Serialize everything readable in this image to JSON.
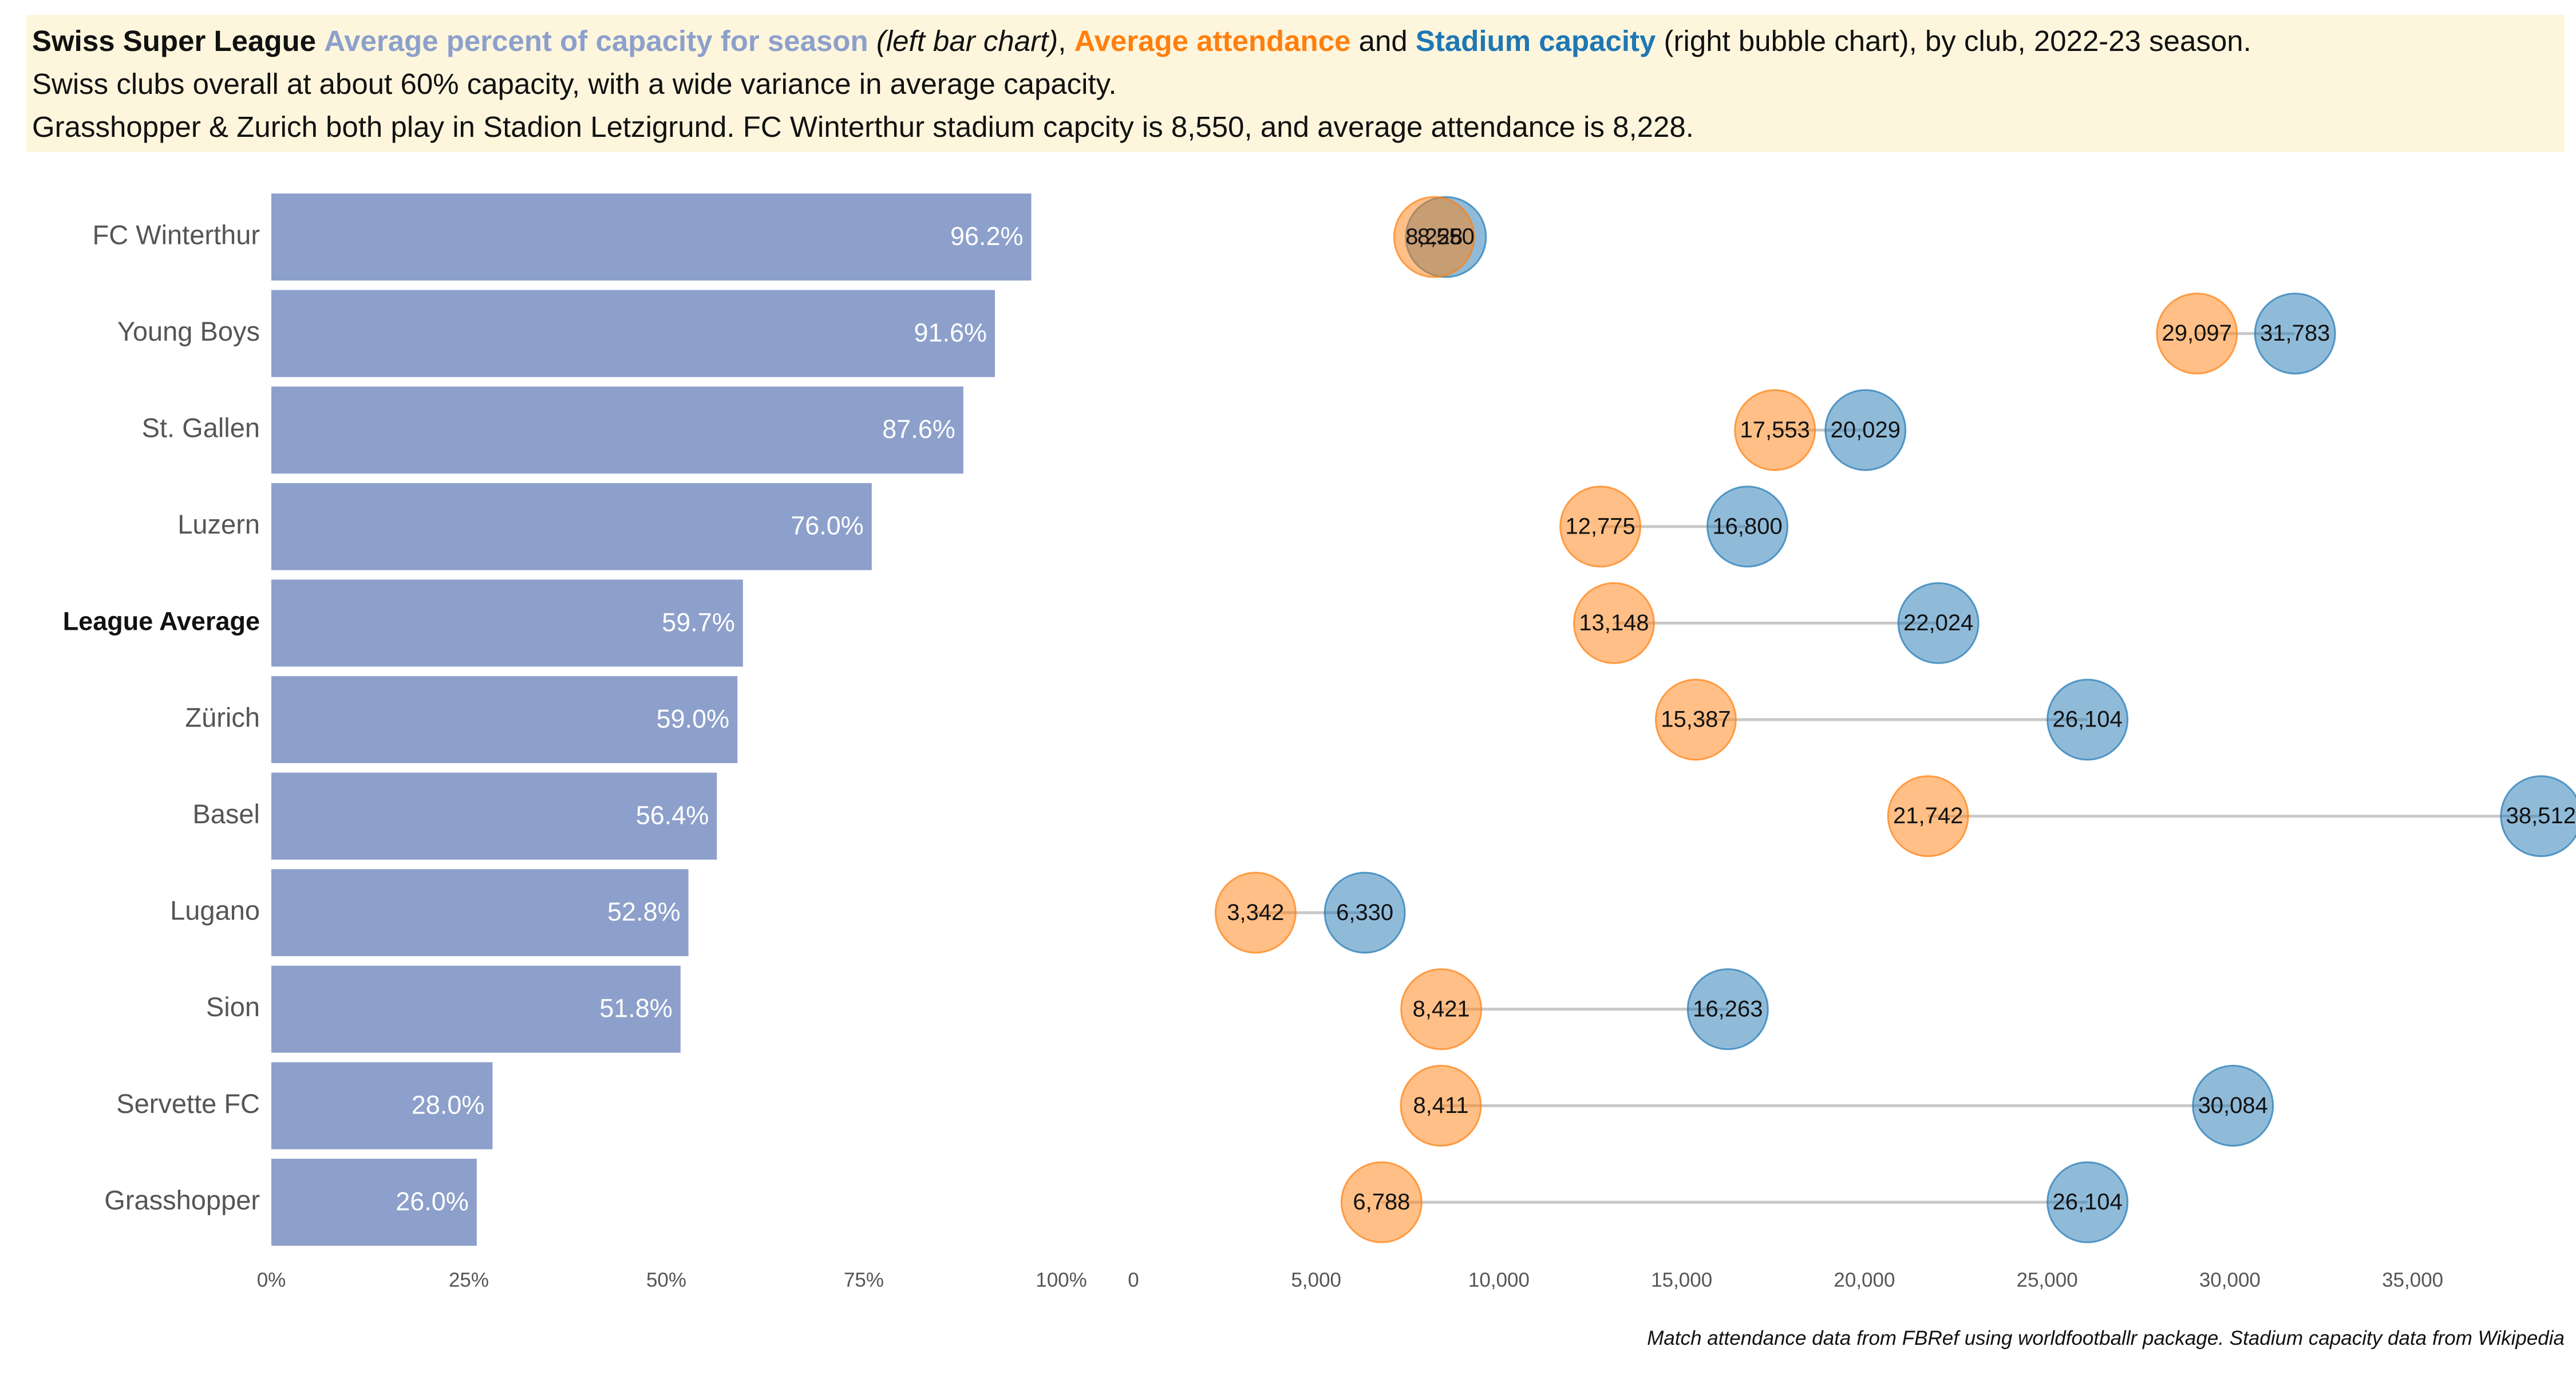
{
  "header": {
    "line1": {
      "league": "Swiss Super League",
      "pct_label": "Average percent of capacity for season",
      "left_note": "(left bar chart)",
      "comma": ",",
      "att_label": "Average attendance",
      "and": "and",
      "cap_label": "Stadium capacity",
      "right_note": "(right bubble chart), by club, 2022-23 season."
    },
    "line2": "Swiss clubs overall at about 60% capacity, with a wide variance in average capacity.",
    "line3": "Grasshopper & Zurich both play in Stadion Letzigrund. FC Winterthur stadium capcity is 8,550, and average attendance is 8,228."
  },
  "source": "Match attendance data from FBRef using worldfootballr package. Stadium capacity data from Wikipedia",
  "colors": {
    "bar": "#8da0cb",
    "attendance": "#ff7f0e",
    "capacity": "#1f77b4",
    "connector": "#c8c8c8",
    "axis_text": "#555555",
    "label_text": "#555555"
  },
  "chart_data": [
    {
      "type": "bar",
      "orientation": "horizontal",
      "categories": [
        "FC Winterthur",
        "Young Boys",
        "St. Gallen",
        "Luzern",
        "League Average",
        "Zürich",
        "Basel",
        "Lugano",
        "Sion",
        "Servette FC",
        "Grasshopper"
      ],
      "values": [
        96.2,
        91.6,
        87.6,
        76.0,
        59.7,
        59.0,
        56.4,
        52.8,
        51.8,
        28.0,
        26.0
      ],
      "value_labels": [
        "96.2%",
        "91.6%",
        "87.6%",
        "76.0%",
        "59.7%",
        "59.0%",
        "56.4%",
        "52.8%",
        "51.8%",
        "28.0%",
        "26.0%"
      ],
      "highlight_category": "League Average",
      "xlim": [
        0,
        100
      ],
      "xticks": [
        0,
        25,
        50,
        75,
        100
      ],
      "xtick_labels": [
        "0%",
        "25%",
        "50%",
        "75%",
        "100%"
      ],
      "grid": false
    },
    {
      "type": "scatter",
      "subtype": "dumbbell",
      "categories": [
        "FC Winterthur",
        "Young Boys",
        "St. Gallen",
        "Luzern",
        "League Average",
        "Zürich",
        "Basel",
        "Lugano",
        "Sion",
        "Servette FC",
        "Grasshopper"
      ],
      "series": [
        {
          "name": "Average attendance",
          "values": [
            8228,
            29097,
            17553,
            12775,
            13148,
            15387,
            21742,
            3342,
            8421,
            8411,
            6788
          ],
          "labels": [
            "8,228",
            "29,097",
            "17,553",
            "12,775",
            "13,148",
            "15,387",
            "21,742",
            "3,342",
            "8,421",
            "8,411",
            "6,788"
          ]
        },
        {
          "name": "Stadium capacity",
          "values": [
            8550,
            31783,
            20029,
            16800,
            22024,
            26104,
            38512,
            6330,
            16263,
            30084,
            26104
          ],
          "labels": [
            "8,550",
            "31,783",
            "20,029",
            "16,800",
            "22,024",
            "26,104",
            "38,512",
            "6,330",
            "16,263",
            "30,084",
            "26,104"
          ]
        }
      ],
      "xlim": [
        0,
        39000
      ],
      "xticks": [
        0,
        5000,
        10000,
        15000,
        20000,
        25000,
        30000,
        35000
      ],
      "xtick_labels": [
        "0",
        "5,000",
        "10,000",
        "15,000",
        "20,000",
        "25,000",
        "30,000",
        "35,000"
      ],
      "grid": false
    }
  ]
}
